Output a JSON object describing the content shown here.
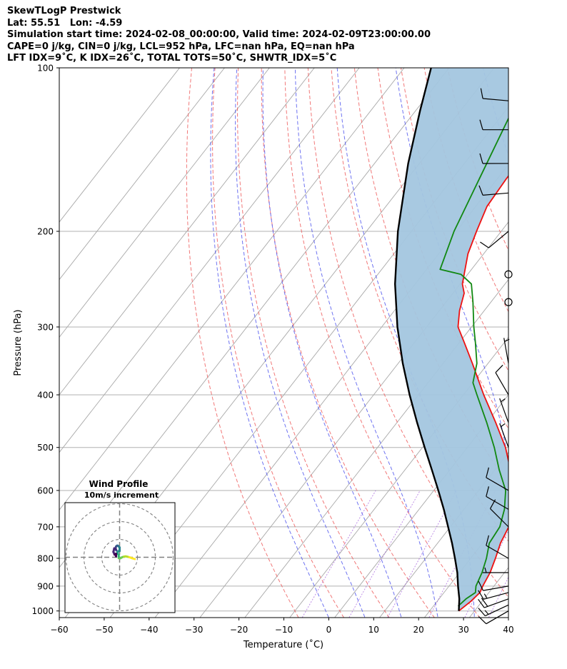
{
  "header": {
    "line1": "SkewTLogP Prestwick",
    "line2": "Lat: 55.51   Lon: -4.59",
    "line3": "Simulation start time: 2024-02-08_00:00:00, Valid time: 2024-02-09T23:00:00.00",
    "line4": "CAPE=0 j/kg, CIN=0 j/kg, LCL=952 hPa, LFC=nan hPa, EQ=nan hPa",
    "line5": "LFT IDX=9˚C, K IDX=26˚C, TOTAL TOTS=50˚C, SHWTR_IDX=5˚C"
  },
  "chart_data": [
    {
      "type": "line",
      "subtype": "skew-t log-p",
      "xlabel": "Temperature (˚C)",
      "ylabel": "Pressure (hPa)",
      "xlim": [
        -60,
        40
      ],
      "ylim": [
        1050,
        100
      ],
      "y_scale": "log",
      "x_ticks": [
        "−60",
        "−50",
        "−40",
        "−30",
        "−20",
        "−10",
        "0",
        "10",
        "20",
        "30",
        "40"
      ],
      "y_ticks": [
        "100",
        "200",
        "300",
        "400",
        "500",
        "600",
        "700",
        "800",
        "900",
        "1000"
      ],
      "grid": true,
      "shading": {
        "between": [
          "Parcel path",
          "Temperature"
        ],
        "color": "#a3c6df"
      },
      "series": [
        {
          "color": "#ee1111",
          "points": [
            [
              1000,
              6.5
            ],
            [
              960,
              7.5
            ],
            [
              925,
              8.0
            ],
            [
              900,
              7.5
            ],
            [
              850,
              6.8
            ],
            [
              800,
              5.5
            ],
            [
              750,
              4.0
            ],
            [
              700,
              3.0
            ],
            [
              650,
              1.0
            ],
            [
              600,
              -2.5
            ],
            [
              550,
              -6.5
            ],
            [
              500,
              -11.5
            ],
            [
              450,
              -18.0
            ],
            [
              400,
              -25.5
            ],
            [
              350,
              -33.5
            ],
            [
              320,
              -39.0
            ],
            [
              300,
              -43.0
            ],
            [
              280,
              -45.5
            ],
            [
              260,
              -47.5
            ],
            [
              250,
              -49.5
            ],
            [
              220,
              -53.5
            ],
            [
              200,
              -55.5
            ],
            [
              180,
              -57.5
            ],
            [
              160,
              -58.0
            ],
            [
              140,
              -58.0
            ],
            [
              120,
              -58.0
            ],
            [
              100,
              -58.0
            ]
          ]
        },
        {
          "color": "#118811",
          "points": [
            [
              980,
              5.5
            ],
            [
              950,
              6.0
            ],
            [
              925,
              7.0
            ],
            [
              900,
              6.0
            ],
            [
              850,
              5.0
            ],
            [
              800,
              3.5
            ],
            [
              750,
              1.5
            ],
            [
              700,
              1.0
            ],
            [
              650,
              -1.0
            ],
            [
              600,
              -4.0
            ],
            [
              550,
              -9.0
            ],
            [
              500,
              -14.0
            ],
            [
              450,
              -20.0
            ],
            [
              400,
              -27.0
            ],
            [
              380,
              -30.0
            ],
            [
              350,
              -32.5
            ],
            [
              320,
              -36.5
            ],
            [
              300,
              -39.5
            ],
            [
              270,
              -44.0
            ],
            [
              250,
              -47.5
            ],
            [
              240,
              -51.5
            ],
            [
              235,
              -57.0
            ],
            [
              200,
              -60.5
            ],
            [
              160,
              -64.0
            ],
            [
              120,
              -68.5
            ],
            [
              100,
              -72.0
            ]
          ]
        },
        {
          "name": "Parcel path",
          "color": "#000000",
          "points": [
            [
              1000,
              6.5
            ],
            [
              950,
              4.5
            ],
            [
              900,
              2.0
            ],
            [
              850,
              -0.5
            ],
            [
              800,
              -3.5
            ],
            [
              750,
              -6.8
            ],
            [
              700,
              -10.5
            ],
            [
              650,
              -14.5
            ],
            [
              600,
              -19.0
            ],
            [
              550,
              -24.0
            ],
            [
              500,
              -29.5
            ],
            [
              450,
              -35.5
            ],
            [
              400,
              -42.0
            ],
            [
              350,
              -49.0
            ],
            [
              300,
              -56.5
            ],
            [
              250,
              -64.5
            ],
            [
              200,
              -73.0
            ],
            [
              150,
              -82.5
            ],
            [
              120,
              -89.0
            ],
            [
              100,
              -94.0
            ]
          ]
        }
      ],
      "background_lines": {
        "isotherms_c": [
          -150,
          -140,
          -130,
          -120,
          -110,
          -100,
          -90,
          -80,
          -70,
          -60,
          -50,
          -40,
          -30,
          -20,
          -10,
          0,
          10,
          20,
          30,
          40
        ],
        "dry_adiabats_c": [
          -30,
          -20,
          -10,
          0,
          10,
          20,
          30,
          40,
          50,
          60,
          70,
          80
        ],
        "moist_adiabats_c": [
          -20,
          -12,
          -4,
          4,
          12,
          20,
          28,
          36
        ],
        "mixing_ratio_lines": [
          0.4,
          1,
          2,
          4,
          7,
          10,
          16,
          24
        ]
      },
      "wind_barbs": [
        {
          "p": 1000,
          "dir": 240,
          "kt": 10
        },
        {
          "p": 975,
          "dir": 245,
          "kt": 18
        },
        {
          "p": 950,
          "dir": 250,
          "kt": 20
        },
        {
          "p": 925,
          "dir": 255,
          "kt": 15
        },
        {
          "p": 900,
          "dir": 260,
          "kt": 10
        },
        {
          "p": 850,
          "dir": 270,
          "kt": 8
        },
        {
          "p": 800,
          "dir": 300,
          "kt": 10
        },
        {
          "p": 700,
          "dir": 315,
          "kt": 10
        },
        {
          "p": 650,
          "dir": 300,
          "kt": 10
        },
        {
          "p": 600,
          "dir": 300,
          "kt": 10
        },
        {
          "p": 500,
          "dir": 340,
          "kt": 5
        },
        {
          "p": 450,
          "dir": 340,
          "kt": 5
        },
        {
          "p": 400,
          "dir": 330,
          "kt": 10
        },
        {
          "p": 350,
          "dir": 350,
          "kt": 5
        },
        {
          "p": 270,
          "dir": 0,
          "kt": 0
        },
        {
          "p": 240,
          "dir": 0,
          "kt": 0
        },
        {
          "p": 200,
          "dir": 230,
          "kt": 10
        },
        {
          "p": 170,
          "dir": 265,
          "kt": 10
        },
        {
          "p": 150,
          "dir": 270,
          "kt": 10
        },
        {
          "p": 130,
          "dir": 270,
          "kt": 10
        },
        {
          "p": 115,
          "dir": 275,
          "kt": 10
        }
      ]
    },
    {
      "type": "scatter",
      "subtype": "hodograph",
      "title": "Wind Profile",
      "subtitle": "10m/s increment",
      "ring_step_ms": 10,
      "rings": 3,
      "colormap": "viridis",
      "points": [
        [
          8.5,
          -1.0
        ],
        [
          7.0,
          -0.5
        ],
        [
          5.5,
          0.0
        ],
        [
          4.5,
          0.3
        ],
        [
          3.5,
          0.5
        ],
        [
          2.5,
          0.4
        ],
        [
          1.5,
          0.1
        ],
        [
          0.5,
          -0.5
        ],
        [
          -0.5,
          -0.5
        ],
        [
          -0.5,
          0.3
        ],
        [
          -0.5,
          1.5
        ],
        [
          -1.5,
          2.0
        ],
        [
          -1.0,
          3.0
        ],
        [
          -0.5,
          3.5
        ],
        [
          0.0,
          3.5
        ],
        [
          0.0,
          5.5
        ],
        [
          -0.5,
          6.0
        ],
        [
          -1.0,
          6.5
        ],
        [
          -1.5,
          6.5
        ],
        [
          -2.0,
          6.0
        ],
        [
          -2.3,
          5.0
        ],
        [
          -1.8,
          3.8
        ],
        [
          -2.2,
          4.5
        ],
        [
          -3.0,
          5.0
        ],
        [
          -3.5,
          3.0
        ],
        [
          -2.8,
          1.5
        ],
        [
          -2.0,
          2.0
        ],
        [
          -2.0,
          0.5
        ]
      ]
    }
  ]
}
